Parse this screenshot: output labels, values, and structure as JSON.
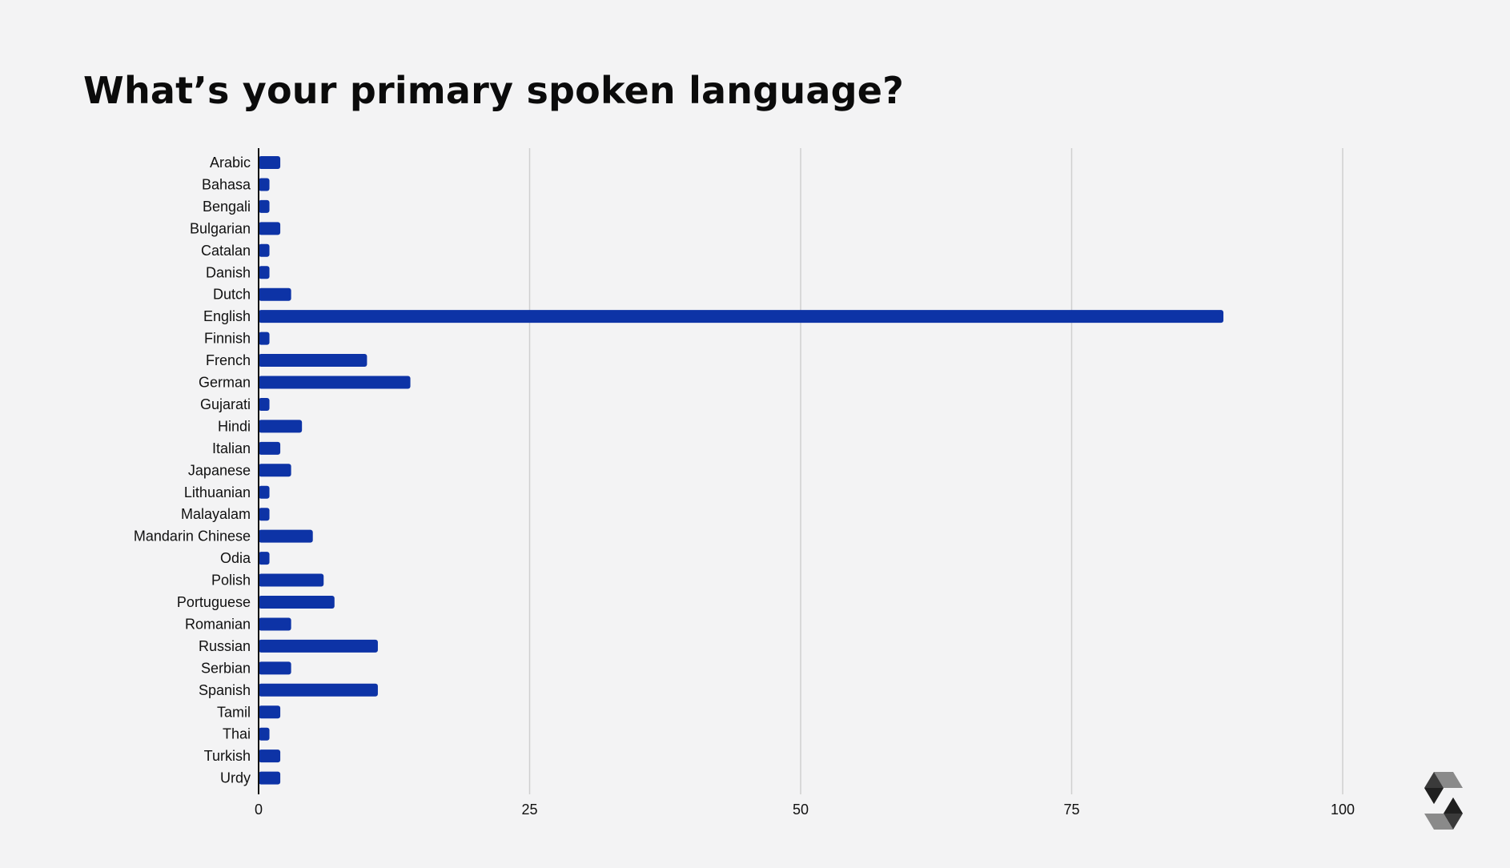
{
  "title": "What’s your primary spoken language?",
  "colors": {
    "background": "#f3f3f4",
    "bar": "#0d33a6",
    "gridline": "#cfcfcf",
    "axis": "#111111",
    "text": "#111111"
  },
  "logo_icon": "solidity-logo-icon",
  "chart_data": {
    "type": "bar",
    "orientation": "horizontal",
    "title": "What’s your primary spoken language?",
    "xlabel": "",
    "ylabel": "",
    "xlim": [
      0,
      100
    ],
    "xticks": [
      0,
      25,
      50,
      75,
      100
    ],
    "grid": true,
    "legend": "none",
    "categories": [
      "Arabic",
      "Bahasa",
      "Bengali",
      "Bulgarian",
      "Catalan",
      "Danish",
      "Dutch",
      "English",
      "Finnish",
      "French",
      "German",
      "Gujarati",
      "Hindi",
      "Italian",
      "Japanese",
      "Lithuanian",
      "Malayalam",
      "Mandarin Chinese",
      "Odia",
      "Polish",
      "Portuguese",
      "Romanian",
      "Russian",
      "Serbian",
      "Spanish",
      "Tamil",
      "Thai",
      "Turkish",
      "Urdy"
    ],
    "values": [
      2,
      1,
      1,
      2,
      1,
      1,
      3,
      89,
      1,
      10,
      14,
      1,
      4,
      2,
      3,
      1,
      1,
      5,
      1,
      6,
      7,
      3,
      11,
      3,
      11,
      2,
      1,
      2,
      2
    ]
  }
}
